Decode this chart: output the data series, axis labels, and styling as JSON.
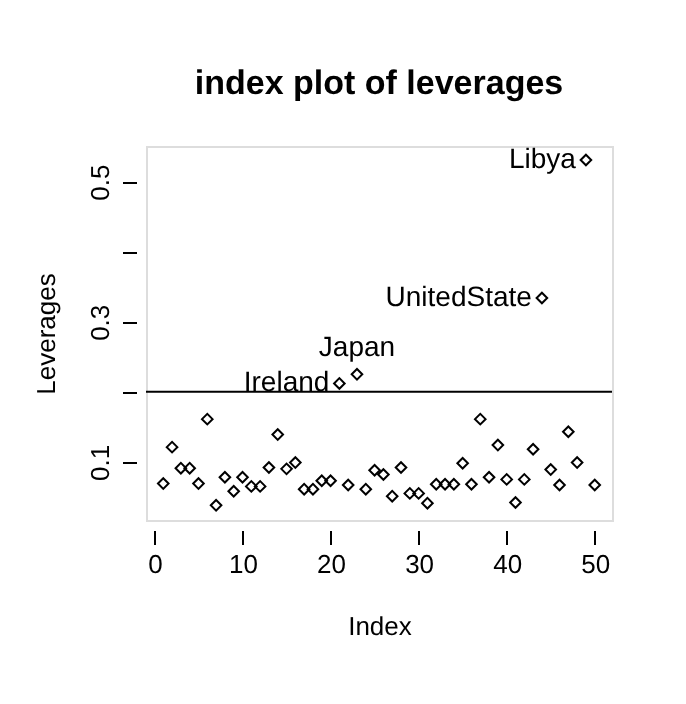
{
  "chart_data": {
    "type": "scatter",
    "title": "index plot of leverages",
    "xlabel": "Index",
    "ylabel": "Leverages",
    "x": [
      1,
      2,
      3,
      4,
      5,
      6,
      7,
      8,
      9,
      10,
      11,
      12,
      13,
      14,
      15,
      16,
      17,
      18,
      19,
      20,
      21,
      22,
      23,
      24,
      25,
      26,
      27,
      28,
      29,
      30,
      31,
      32,
      33,
      34,
      35,
      36,
      37,
      38,
      39,
      40,
      41,
      42,
      43,
      44,
      45,
      46,
      47,
      48,
      49,
      50
    ],
    "values": [
      0.069,
      0.121,
      0.091,
      0.091,
      0.069,
      0.161,
      0.038,
      0.078,
      0.058,
      0.078,
      0.065,
      0.065,
      0.092,
      0.139,
      0.09,
      0.099,
      0.061,
      0.061,
      0.073,
      0.073,
      0.212,
      0.067,
      0.225,
      0.061,
      0.088,
      0.082,
      0.051,
      0.092,
      0.055,
      0.055,
      0.041,
      0.068,
      0.068,
      0.068,
      0.098,
      0.068,
      0.161,
      0.078,
      0.124,
      0.075,
      0.042,
      0.075,
      0.118,
      0.334,
      0.089,
      0.067,
      0.143,
      0.099,
      0.531,
      0.067
    ],
    "color": "#000000",
    "marker": "diamond",
    "xlim": [
      -0.96,
      51.96
    ],
    "ylim": [
      0.017,
      0.551
    ],
    "xticks": [
      0,
      10,
      20,
      30,
      40,
      50
    ],
    "yticks": [
      0.1,
      {
        "value": 0.2,
        "label": null
      },
      0.3,
      {
        "value": 0.4,
        "label": null
      },
      0.5
    ],
    "ref_lines": [
      {
        "axis": "y",
        "value": 0.2,
        "color": "#000000"
      }
    ],
    "annotations": [
      {
        "text": "Ireland",
        "x": 21,
        "y": 0.212
      },
      {
        "text": "Japan",
        "x": 23,
        "y": 0.225
      },
      {
        "text": "UnitedState",
        "x": 44,
        "y": 0.334
      },
      {
        "text": "Libya",
        "x": 49,
        "y": 0.531
      }
    ],
    "grid": false
  }
}
